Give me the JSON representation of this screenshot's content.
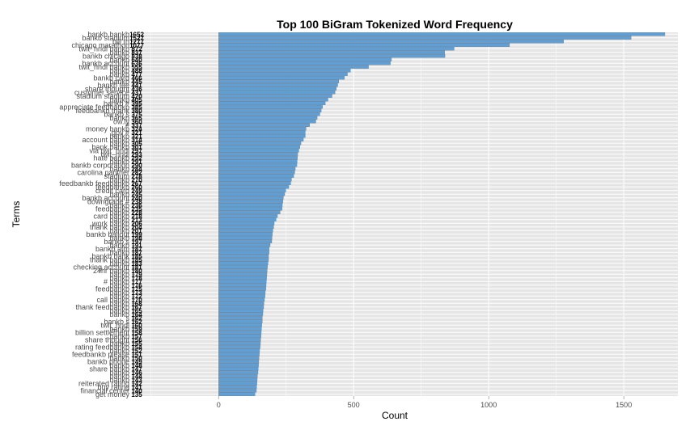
{
  "chart_data": {
    "type": "bar",
    "orientation": "horizontal",
    "title": "Top 100 BiGram Tokenized Word Frequency",
    "xlabel": "Count",
    "ylabel": "Terms",
    "xlim": [
      -300,
      1700
    ],
    "x_ticks": [
      0,
      500,
      1000,
      1500
    ],
    "bar_color": "#5d9fd8",
    "bar_border_color": "#7d7d7d",
    "panel_color": "#e5e5e5",
    "grid_color": "#ffffff",
    "categories": [
      "bankb bankb",
      "bankb stadium",
      "bill th",
      "chicago marathon",
      "twit_hndl bankb",
      "bankb ",
      "bankb chicago",
      "bankb ",
      "bankb account",
      "twit_hndl bankb",
      "bankb ",
      "bankb ",
      "bankb card",
      "bankb ",
      "bankb fee",
      "share thought",
      "customer service",
      "stadium stadium",
      "bankb ",
      "bankb #",
      "appreciate feedbankb",
      "feedbankb thank",
      "bankb s",
      "bankb ",
      "ow.ly",
      "# ",
      "money bankb",
      "gov #",
      "bankb ",
      "account bankb",
      "bankb ",
      "bank bankb",
      "via twit_hndl",
      "twit_hndl ",
      "hate bankb",
      "bankb ",
      "bankb corporation",
      "bankb ",
      "carolina panther",
      "stadium ",
      "bankb ",
      "feedbankb feedbankb",
      "feedbankb ",
      "credit card",
      "bankb ",
      "bankb account",
      "downgrade #",
      "bankb ",
      "feedbankb ",
      "bankb ",
      "card bankb",
      "bankb ",
      "work bankb",
      "thank bankb",
      "bankb ",
      "bankb bailout",
      "bankb ",
      "bankb s",
      "bankb ",
      "bankb atm",
      "bankb ",
      "bankb bank",
      "thank bankb",
      "bankb ",
      "checking account",
      "24hr bankb",
      "bankb ",
      "bankb ",
      "# bankb",
      "bankb ",
      "feedbankb ",
      "bankb ",
      "bankb ",
      "call bankb",
      "bankb ",
      "thank feedbankb",
      "bankb ",
      "bankb ",
      "s ",
      "bankb s",
      "twit_hndl ",
      "bankb ",
      "billion settlement",
      "bankb ",
      "share thought",
      "bankb ",
      "rating feedbankb",
      "bankb ",
      "feedbankb please",
      "bankb ",
      "bankb phone",
      "bankb ",
      "share bankb",
      "bankb ",
      "bankb ",
      "bankb ",
      "reiterated rating",
      "buy rating",
      "financial center",
      "get money"
    ],
    "values": [
      1652,
      1527,
      1277,
      1077,
      872,
      837,
      838,
      640,
      636,
      555,
      488,
      477,
      466,
      445,
      441,
      436,
      431,
      420,
      405,
      395,
      385,
      380,
      375,
      365,
      360,
      337,
      324,
      321,
      321,
      314,
      305,
      301,
      297,
      293,
      292,
      291,
      290,
      284,
      282,
      278,
      270,
      267,
      260,
      249,
      245,
      240,
      238,
      236,
      235,
      228,
      218,
      213,
      206,
      204,
      201,
      199,
      198,
      197,
      191,
      187,
      187,
      185,
      185,
      183,
      181,
      180,
      179,
      178,
      177,
      176,
      175,
      173,
      172,
      170,
      168,
      167,
      165,
      164,
      162,
      162,
      160,
      159,
      158,
      157,
      156,
      155,
      154,
      152,
      151,
      150,
      149,
      148,
      147,
      146,
      144,
      143,
      142,
      141,
      140,
      135
    ]
  }
}
